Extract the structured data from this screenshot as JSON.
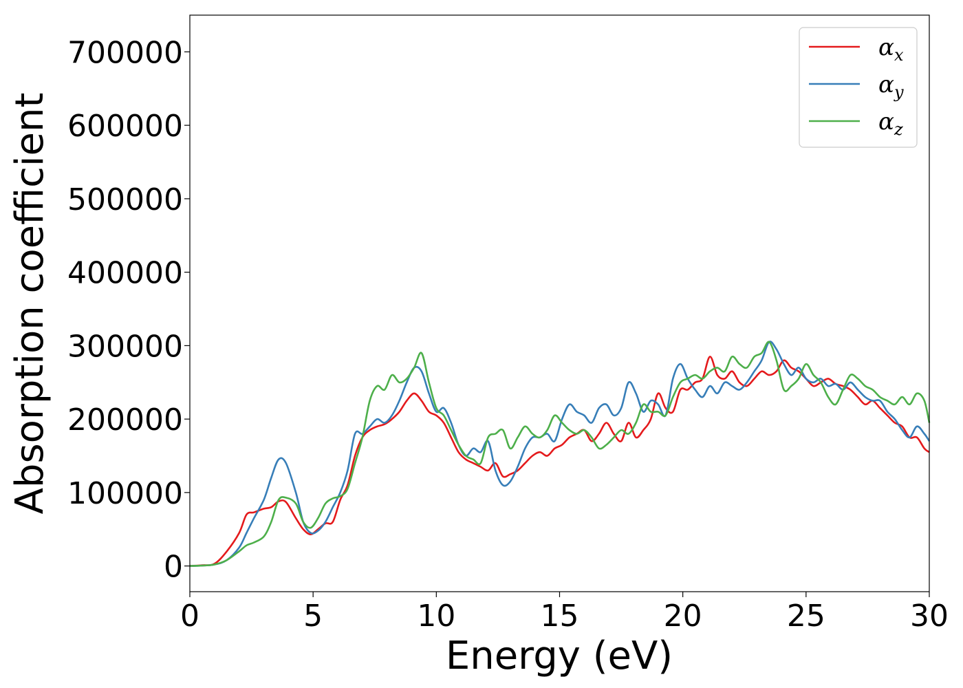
{
  "chart_data": {
    "type": "line",
    "title": "",
    "xlabel": "Energy (eV)",
    "ylabel": "Absorption coefficient",
    "xlim": [
      0,
      30
    ],
    "ylim": [
      -35000,
      750000
    ],
    "x_ticks": [
      0,
      5,
      10,
      15,
      20,
      25,
      30
    ],
    "y_ticks": [
      0,
      100000,
      200000,
      300000,
      400000,
      500000,
      600000,
      700000
    ],
    "grid": false,
    "legend_position": "top-right",
    "series": [
      {
        "name": "αx",
        "symbol": "α",
        "subscript": "x",
        "color": "#e41a1c",
        "x": [
          0,
          0.5,
          1,
          1.5,
          2,
          2.3,
          2.6,
          3,
          3.3,
          3.6,
          3.9,
          4.3,
          4.6,
          4.9,
          5.2,
          5.5,
          5.8,
          6.1,
          6.4,
          6.7,
          7,
          7.3,
          7.6,
          7.9,
          8.2,
          8.5,
          8.8,
          9.1,
          9.4,
          9.7,
          10,
          10.3,
          10.6,
          10.9,
          11.2,
          11.5,
          11.8,
          12.1,
          12.4,
          12.7,
          13,
          13.3,
          13.6,
          13.9,
          14.2,
          14.5,
          14.8,
          15.1,
          15.4,
          15.7,
          16,
          16.3,
          16.6,
          16.9,
          17.2,
          17.5,
          17.8,
          18.1,
          18.4,
          18.7,
          19,
          19.3,
          19.6,
          19.9,
          20.2,
          20.5,
          20.8,
          21.1,
          21.4,
          21.7,
          22,
          22.3,
          22.6,
          22.9,
          23.2,
          23.5,
          23.8,
          24.1,
          24.4,
          24.7,
          25,
          25.3,
          25.6,
          25.9,
          26.2,
          26.5,
          26.8,
          27.1,
          27.4,
          27.7,
          28,
          28.3,
          28.6,
          28.9,
          29.2,
          29.5,
          29.8,
          30
        ],
        "values": [
          0,
          1000,
          3000,
          20000,
          45000,
          70000,
          73000,
          78000,
          80000,
          88000,
          87000,
          65000,
          50000,
          43000,
          50000,
          58000,
          60000,
          90000,
          110000,
          150000,
          175000,
          185000,
          190000,
          193000,
          200000,
          210000,
          225000,
          235000,
          225000,
          210000,
          205000,
          195000,
          175000,
          155000,
          145000,
          140000,
          135000,
          130000,
          140000,
          122000,
          125000,
          130000,
          140000,
          150000,
          155000,
          150000,
          160000,
          165000,
          175000,
          180000,
          185000,
          170000,
          180000,
          195000,
          180000,
          170000,
          195000,
          175000,
          185000,
          200000,
          235000,
          215000,
          210000,
          240000,
          240000,
          250000,
          255000,
          285000,
          260000,
          255000,
          265000,
          250000,
          245000,
          255000,
          265000,
          260000,
          265000,
          280000,
          270000,
          265000,
          255000,
          245000,
          250000,
          255000,
          248000,
          245000,
          240000,
          230000,
          220000,
          225000,
          215000,
          205000,
          195000,
          190000,
          175000,
          175000,
          160000,
          155000
        ]
      },
      {
        "name": "αy",
        "symbol": "α",
        "subscript": "y",
        "color": "#377eb8",
        "x": [
          0,
          0.5,
          1,
          1.5,
          2,
          2.3,
          2.6,
          3,
          3.3,
          3.6,
          3.9,
          4.3,
          4.6,
          4.9,
          5.2,
          5.5,
          5.8,
          6.1,
          6.4,
          6.7,
          7,
          7.3,
          7.6,
          7.9,
          8.2,
          8.5,
          8.8,
          9.1,
          9.4,
          9.7,
          10,
          10.3,
          10.6,
          10.9,
          11.2,
          11.5,
          11.8,
          12.1,
          12.4,
          12.7,
          13,
          13.3,
          13.6,
          13.9,
          14.2,
          14.5,
          14.8,
          15.1,
          15.4,
          15.7,
          16,
          16.3,
          16.6,
          16.9,
          17.2,
          17.5,
          17.8,
          18.1,
          18.4,
          18.7,
          19,
          19.3,
          19.6,
          19.9,
          20.2,
          20.5,
          20.8,
          21.1,
          21.4,
          21.7,
          22,
          22.3,
          22.6,
          22.9,
          23.2,
          23.5,
          23.8,
          24.1,
          24.4,
          24.7,
          25,
          25.3,
          25.6,
          25.9,
          26.2,
          26.5,
          26.8,
          27.1,
          27.4,
          27.7,
          28,
          28.3,
          28.6,
          28.9,
          29.2,
          29.5,
          29.8,
          30
        ],
        "values": [
          0,
          500,
          2000,
          8000,
          25000,
          45000,
          65000,
          90000,
          120000,
          145000,
          140000,
          100000,
          60000,
          45000,
          48000,
          60000,
          80000,
          100000,
          130000,
          180000,
          180000,
          190000,
          200000,
          195000,
          205000,
          225000,
          250000,
          270000,
          265000,
          235000,
          210000,
          215000,
          195000,
          165000,
          150000,
          160000,
          155000,
          170000,
          130000,
          110000,
          115000,
          135000,
          160000,
          175000,
          175000,
          180000,
          170000,
          200000,
          220000,
          210000,
          205000,
          195000,
          215000,
          220000,
          205000,
          215000,
          250000,
          235000,
          210000,
          225000,
          220000,
          205000,
          255000,
          275000,
          255000,
          240000,
          230000,
          245000,
          235000,
          250000,
          245000,
          240000,
          250000,
          265000,
          280000,
          305000,
          295000,
          275000,
          260000,
          270000,
          255000,
          250000,
          255000,
          245000,
          248000,
          240000,
          250000,
          240000,
          230000,
          225000,
          225000,
          210000,
          200000,
          185000,
          175000,
          190000,
          180000,
          170000
        ]
      },
      {
        "name": "αz",
        "symbol": "α",
        "subscript": "z",
        "color": "#4daf4a",
        "x": [
          0,
          0.5,
          1,
          1.5,
          2,
          2.3,
          2.6,
          3,
          3.3,
          3.6,
          3.9,
          4.3,
          4.6,
          4.9,
          5.2,
          5.5,
          5.8,
          6.1,
          6.4,
          6.7,
          7,
          7.3,
          7.6,
          7.9,
          8.2,
          8.5,
          8.8,
          9.1,
          9.4,
          9.7,
          10,
          10.3,
          10.6,
          10.9,
          11.2,
          11.5,
          11.8,
          12.1,
          12.4,
          12.7,
          13,
          13.3,
          13.6,
          13.9,
          14.2,
          14.5,
          14.8,
          15.1,
          15.4,
          15.7,
          16,
          16.3,
          16.6,
          16.9,
          17.2,
          17.5,
          17.8,
          18.1,
          18.4,
          18.7,
          19,
          19.3,
          19.6,
          19.9,
          20.2,
          20.5,
          20.8,
          21.1,
          21.4,
          21.7,
          22,
          22.3,
          22.6,
          22.9,
          23.2,
          23.5,
          23.8,
          24.1,
          24.4,
          24.7,
          25,
          25.3,
          25.6,
          25.9,
          26.2,
          26.5,
          26.8,
          27.1,
          27.4,
          27.7,
          28,
          28.3,
          28.6,
          28.9,
          29.2,
          29.5,
          29.8,
          30
        ],
        "values": [
          0,
          500,
          2000,
          8000,
          20000,
          28000,
          32000,
          40000,
          60000,
          90000,
          93000,
          85000,
          60000,
          52000,
          65000,
          85000,
          92000,
          95000,
          105000,
          140000,
          175000,
          225000,
          245000,
          240000,
          260000,
          250000,
          255000,
          270000,
          290000,
          250000,
          215000,
          205000,
          185000,
          165000,
          150000,
          145000,
          140000,
          175000,
          180000,
          185000,
          160000,
          175000,
          190000,
          180000,
          175000,
          185000,
          205000,
          195000,
          185000,
          180000,
          185000,
          175000,
          160000,
          165000,
          175000,
          185000,
          180000,
          195000,
          220000,
          210000,
          210000,
          205000,
          230000,
          250000,
          255000,
          260000,
          255000,
          265000,
          270000,
          265000,
          285000,
          275000,
          270000,
          285000,
          290000,
          305000,
          280000,
          240000,
          245000,
          255000,
          275000,
          260000,
          250000,
          230000,
          220000,
          240000,
          260000,
          255000,
          245000,
          240000,
          230000,
          225000,
          220000,
          230000,
          220000,
          235000,
          225000,
          195000
        ]
      }
    ]
  }
}
